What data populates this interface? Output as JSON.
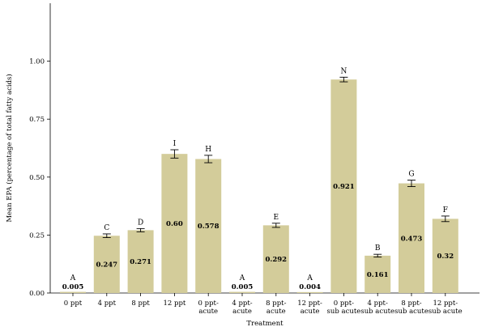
{
  "chart_data": {
    "type": "bar",
    "xlabel": "Treatment",
    "ylabel": "Mean EPA (percentage of total fatty acids)",
    "ylim": [
      0,
      1.25
    ],
    "yticks": [
      "0.00",
      "0.25",
      "0.50",
      "0.75",
      "1.00"
    ],
    "yticks_values": [
      0,
      0.25,
      0.5,
      0.75,
      1.0
    ],
    "bar_color": "#d3cc9a",
    "categories": [
      [
        "0 ppt"
      ],
      [
        "4 ppt"
      ],
      [
        "8 ppt"
      ],
      [
        "12 ppt"
      ],
      [
        "0 ppt-",
        "acute"
      ],
      [
        "4 ppt-",
        "acute"
      ],
      [
        "8 ppt-",
        "acute"
      ],
      [
        "12 ppt-",
        "acute"
      ],
      [
        "0 ppt-",
        "sub acute"
      ],
      [
        "4 ppt-",
        "sub acute"
      ],
      [
        "8 ppt-",
        "sub acute"
      ],
      [
        "12 ppt-",
        "sub acute"
      ]
    ],
    "values": [
      0.005,
      0.247,
      0.271,
      0.6,
      0.578,
      0.005,
      0.292,
      0.004,
      0.921,
      0.161,
      0.473,
      0.32
    ],
    "value_labels": [
      "0.005",
      "0.247",
      "0.271",
      "0.60",
      "0.578",
      "0.005",
      "0.292",
      "0.004",
      "0.921",
      "0.161",
      "0.473",
      "0.32"
    ],
    "errors": [
      0.0,
      0.008,
      0.007,
      0.018,
      0.016,
      0.0,
      0.009,
      0.0,
      0.01,
      0.006,
      0.014,
      0.012
    ],
    "group_letters": [
      "A",
      "C",
      "D",
      "I",
      "H",
      "A",
      "E",
      "A",
      "N",
      "B",
      "G",
      "F"
    ],
    "grid": false
  }
}
